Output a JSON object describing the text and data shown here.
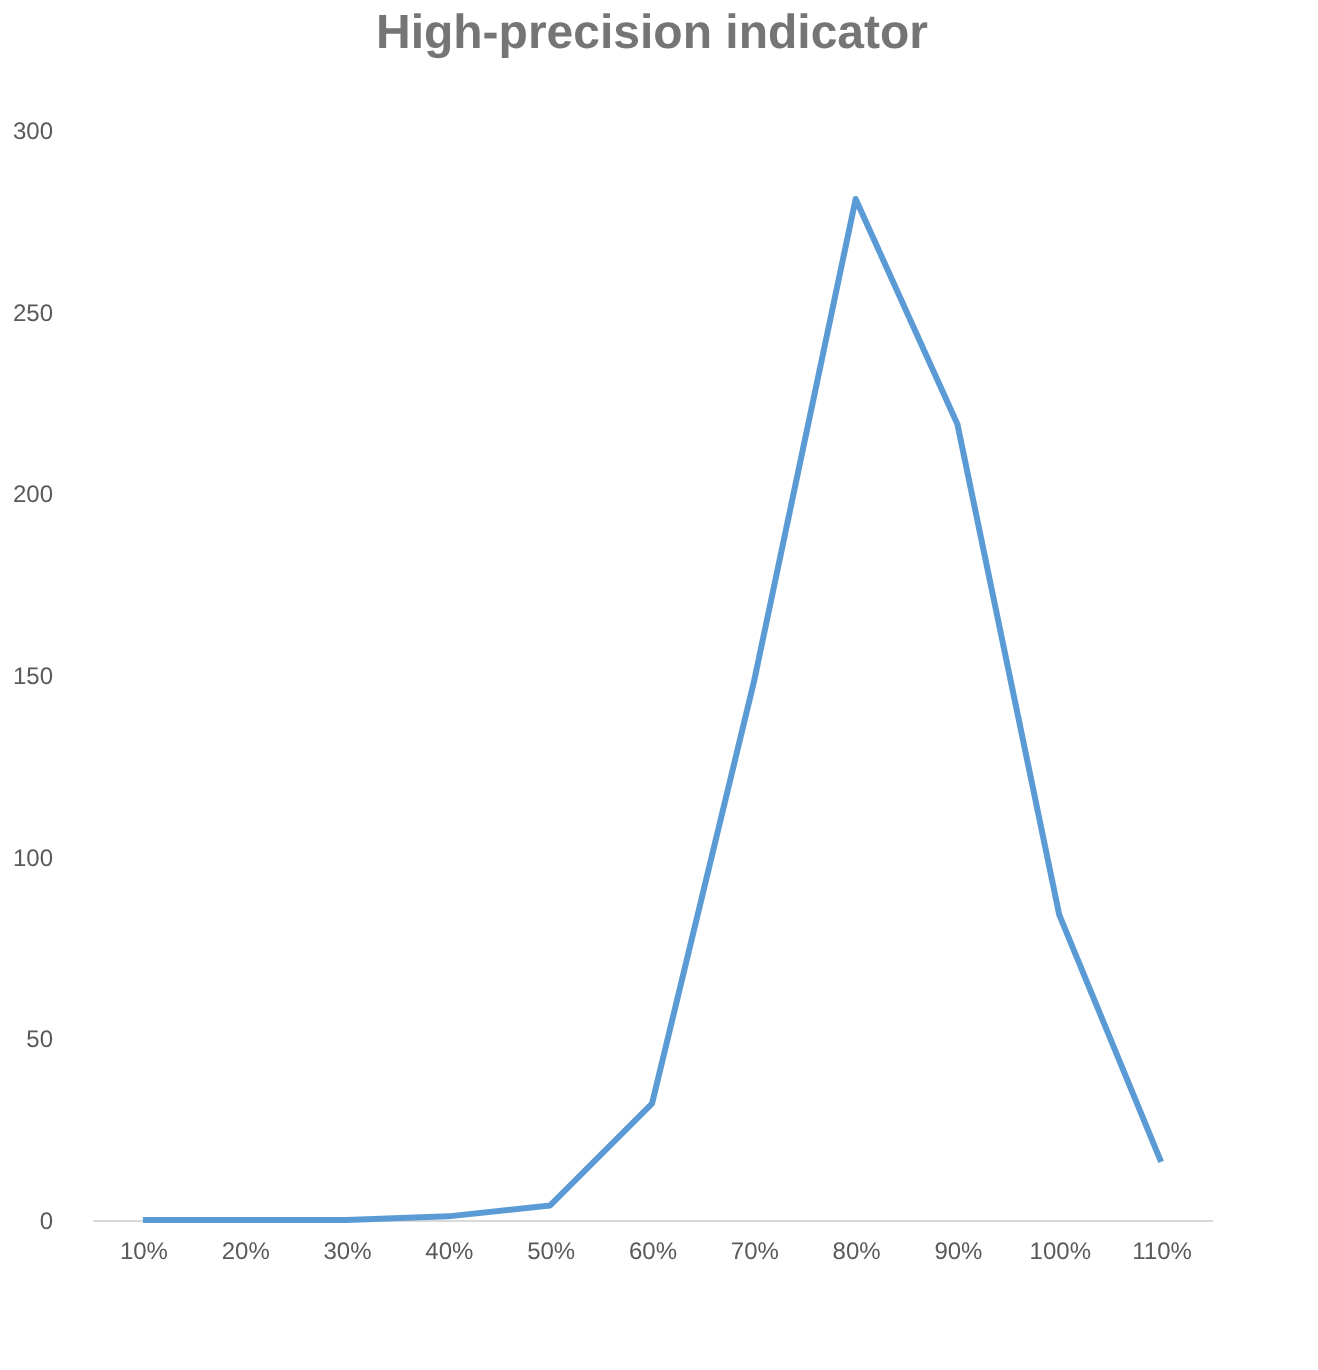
{
  "chart_data": {
    "type": "line",
    "title": "High-precision indicator",
    "categories": [
      "10%",
      "20%",
      "30%",
      "40%",
      "50%",
      "60%",
      "70%",
      "80%",
      "90%",
      "100%",
      "110%"
    ],
    "series": [
      {
        "color": "#5b9bd5",
        "values": [
          0,
          0,
          0,
          1,
          4,
          32,
          148,
          281,
          219,
          84,
          16
        ]
      }
    ],
    "ylim": [
      0,
      300
    ],
    "yticks": [
      0,
      50,
      100,
      150,
      200,
      250,
      300
    ],
    "grid": false,
    "marker": "none",
    "line_style": "solid"
  }
}
